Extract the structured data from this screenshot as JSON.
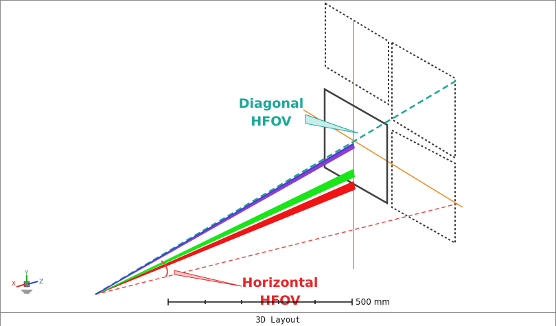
{
  "window": {
    "title": "3D Layout"
  },
  "callouts": {
    "diagonal": {
      "line1": "Diagonal",
      "line2": "HFOV",
      "color": "#1aa89a"
    },
    "horizontal": {
      "line1": "Horizontal",
      "line2": "HFOV",
      "color": "#e8262a"
    }
  },
  "scale_bar": {
    "label": "500 mm"
  },
  "axis_triad": {
    "x": "X",
    "y": "Y",
    "z": "Z"
  },
  "colors": {
    "ray_blue": "#3b3bd6",
    "ray_violet": "#8a3fd0",
    "ray_green": "#18e618",
    "ray_red": "#f01414",
    "sensor": "#404040",
    "optical_axis": "#f08a1c",
    "dotted_frame": "#333333",
    "diagonal_dashed": "#1aa89a",
    "horizontal_dashed": "#e84a4a"
  }
}
